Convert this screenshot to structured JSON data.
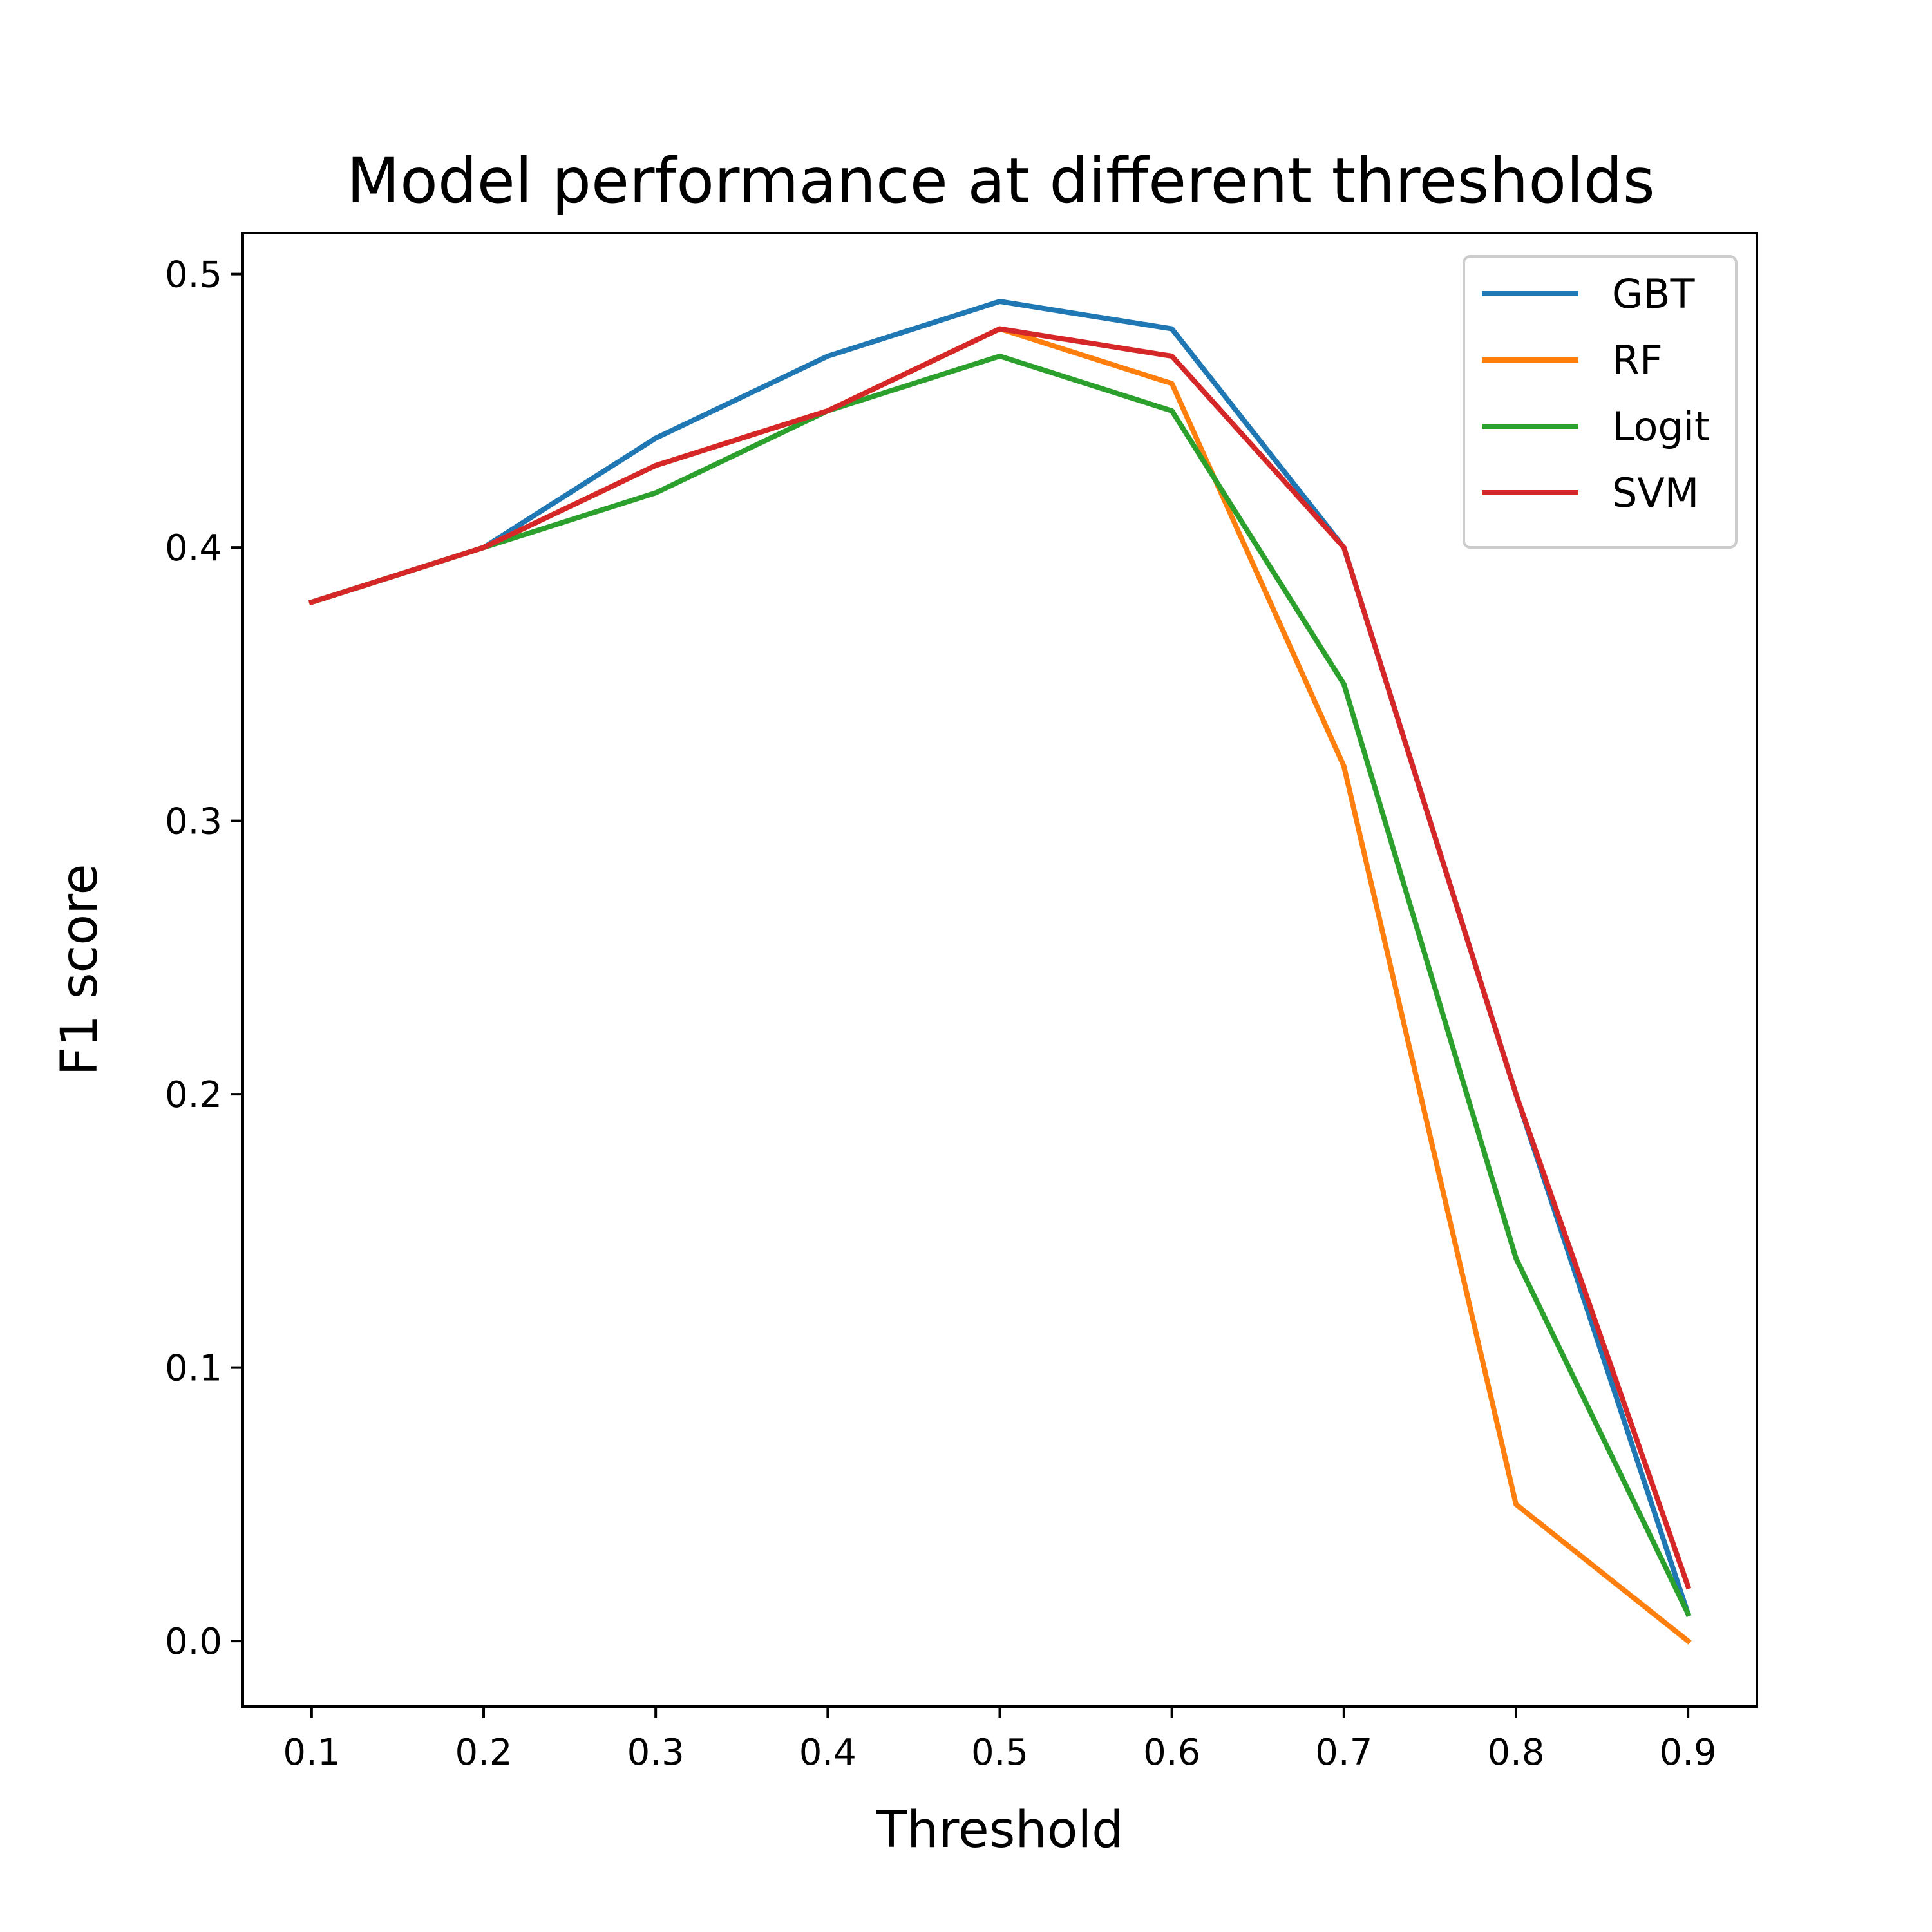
{
  "chart_data": {
    "type": "line",
    "title": "Model performance at different thresholds",
    "xlabel": "Threshold",
    "ylabel": "F1 score",
    "x": [
      0.1,
      0.2,
      0.3,
      0.4,
      0.5,
      0.6,
      0.7,
      0.8,
      0.9
    ],
    "xlim": [
      0.06,
      0.94
    ],
    "ylim": [
      -0.024,
      0.515
    ],
    "xticks": [
      "0.1",
      "0.2",
      "0.3",
      "0.4",
      "0.5",
      "0.6",
      "0.7",
      "0.8",
      "0.9"
    ],
    "yticks": [
      "0.0",
      "0.1",
      "0.2",
      "0.3",
      "0.4",
      "0.5"
    ],
    "grid": false,
    "legend_position": "top-right",
    "series": [
      {
        "name": "GBT",
        "color": "#1f77b4",
        "values": [
          0.38,
          0.4,
          0.44,
          0.47,
          0.49,
          0.48,
          0.4,
          0.2,
          0.01
        ]
      },
      {
        "name": "RF",
        "color": "#ff7f0e",
        "values": [
          0.38,
          0.4,
          0.43,
          0.45,
          0.48,
          0.46,
          0.32,
          0.05,
          0.0
        ]
      },
      {
        "name": "Logit",
        "color": "#2ca02c",
        "values": [
          0.38,
          0.4,
          0.42,
          0.45,
          0.47,
          0.45,
          0.35,
          0.14,
          0.01
        ]
      },
      {
        "name": "SVM",
        "color": "#d62728",
        "values": [
          0.38,
          0.4,
          0.43,
          0.45,
          0.48,
          0.47,
          0.4,
          0.2,
          0.02
        ]
      }
    ]
  }
}
